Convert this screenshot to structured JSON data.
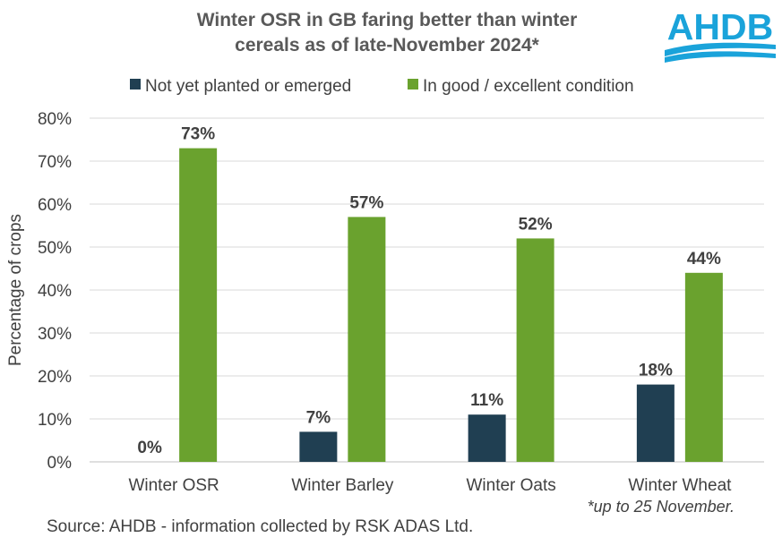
{
  "chart_data": {
    "type": "bar",
    "title_lines": [
      "Winter OSR in GB faring better than winter",
      "cereals as of late-November 2024*"
    ],
    "categories": [
      "Winter OSR",
      "Winter Barley",
      "Winter Oats",
      "Winter Wheat"
    ],
    "series": [
      {
        "name": "Not yet planted or emerged",
        "color": "#203f52",
        "values": [
          0,
          7,
          11,
          18
        ],
        "labels": [
          "0%",
          "7%",
          "11%",
          "18%"
        ]
      },
      {
        "name": "In good / excellent condition",
        "color": "#6aa22e",
        "values": [
          73,
          57,
          52,
          44
        ],
        "labels": [
          "73%",
          "57%",
          "52%",
          "44%"
        ]
      }
    ],
    "ylabel": "Percentage of crops",
    "ylim": [
      0,
      80
    ],
    "yticks": [
      0,
      10,
      20,
      30,
      40,
      50,
      60,
      70,
      80
    ],
    "ytick_labels": [
      "0%",
      "10%",
      "20%",
      "30%",
      "40%",
      "50%",
      "60%",
      "70%",
      "80%"
    ],
    "legend_position": "top",
    "grid": true,
    "footnote": "*up to 25 November.",
    "source": "Source: AHDB - information collected by RSK ADAS Ltd."
  },
  "logo": {
    "text": "AHDB",
    "color": "#1aa3da"
  }
}
